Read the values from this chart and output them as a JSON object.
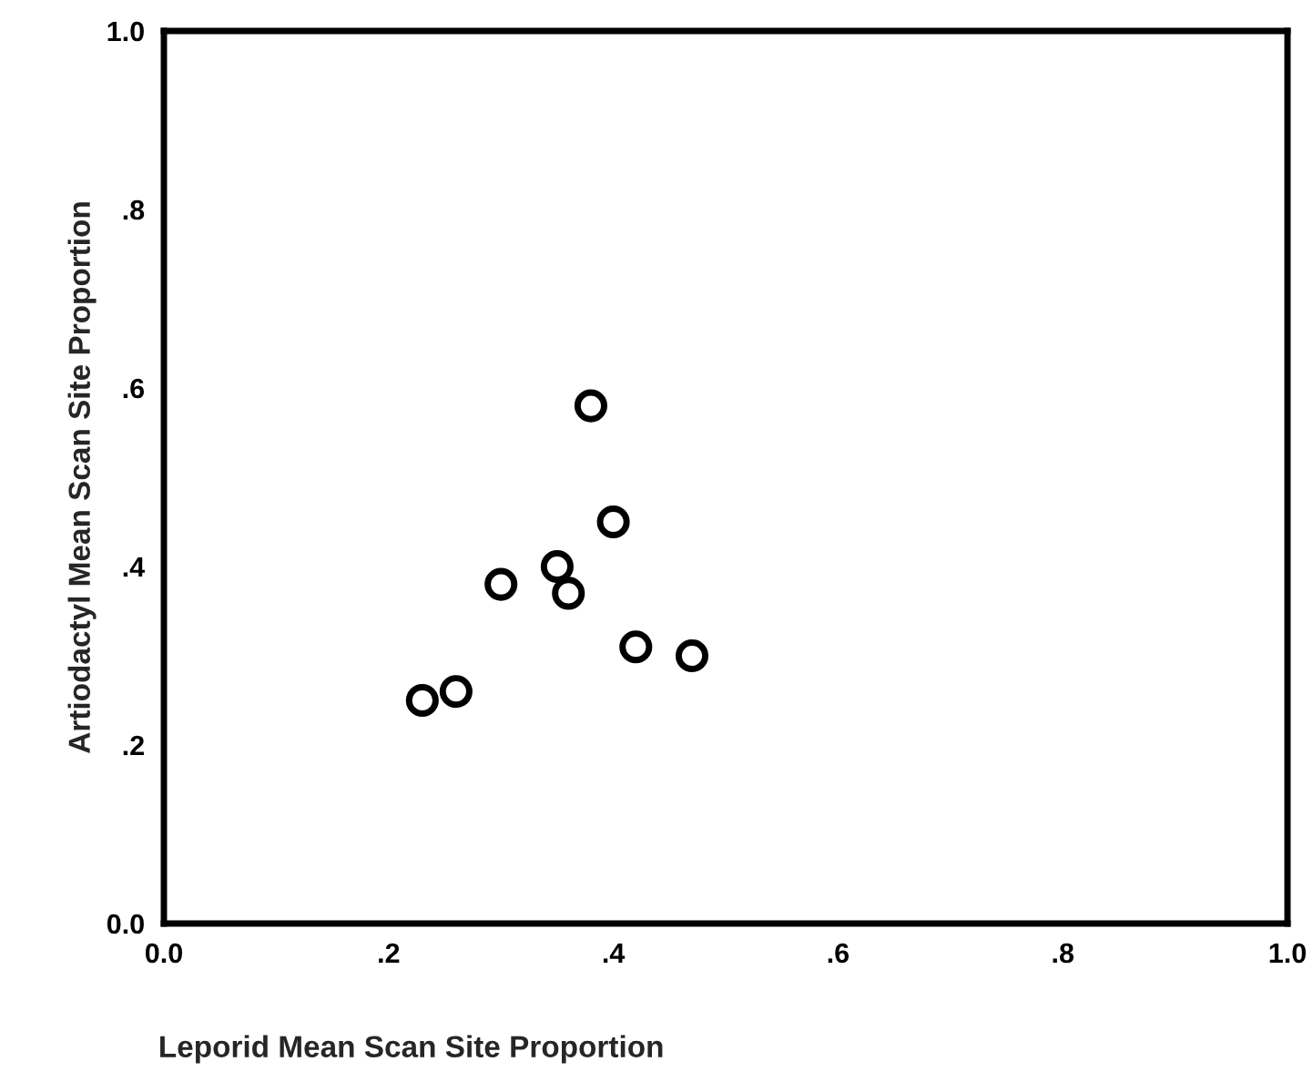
{
  "chart_data": {
    "type": "scatter",
    "xlabel": "Leporid Mean Scan Site Proportion",
    "ylabel": "Artiodactyl Mean Scan Site Proportion",
    "x": [
      0.23,
      0.26,
      0.3,
      0.35,
      0.36,
      0.38,
      0.4,
      0.42,
      0.47
    ],
    "values": [
      0.25,
      0.26,
      0.38,
      0.4,
      0.37,
      0.58,
      0.45,
      0.31,
      0.3
    ],
    "color": "#000000",
    "marker": "circle",
    "xlim": [
      0,
      1
    ],
    "ylim": [
      0,
      1
    ],
    "xticks": [
      {
        "value": 0,
        "label": "0.0"
      },
      {
        "value": 0.2,
        "label": ".2"
      },
      {
        "value": 0.4,
        "label": ".4"
      },
      {
        "value": 0.6,
        "label": ".6"
      },
      {
        "value": 0.8,
        "label": ".8"
      },
      {
        "value": 1,
        "label": "1.0"
      }
    ],
    "yticks": [
      {
        "value": 0,
        "label": "0.0"
      },
      {
        "value": 0.2,
        "label": ".2"
      },
      {
        "value": 0.4,
        "label": ".4"
      },
      {
        "value": 0.6,
        "label": ".6"
      },
      {
        "value": 0.8,
        "label": ".8"
      },
      {
        "value": 1,
        "label": "1.0"
      }
    ],
    "grid": false
  }
}
